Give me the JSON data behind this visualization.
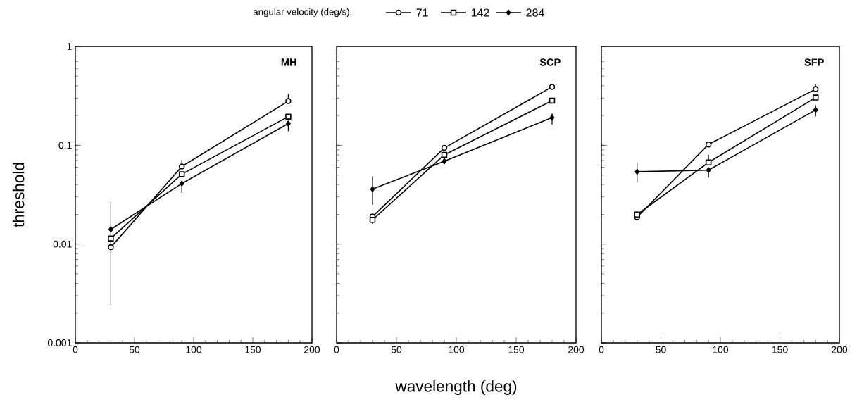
{
  "chart_data": [
    {
      "type": "line",
      "title": "MH",
      "ylabel": "threshold",
      "legend_title": "angular velocity (deg/s):",
      "legend": "top",
      "log": "y",
      "grid": false,
      "line_style": "solid",
      "x": [
        30,
        90,
        180
      ],
      "xlim": [
        0,
        200
      ],
      "ylim": [
        0.001,
        1
      ],
      "xticks": [
        0,
        50,
        100,
        150,
        200
      ],
      "yticks": [
        0.001,
        0.01,
        0.1,
        1
      ],
      "series": [
        {
          "name": "71",
          "color": "#000000",
          "marker": "circle",
          "values": [
            0.0093,
            0.061,
            0.28
          ],
          "errors": [
            [
              0.0024,
              0.027
            ],
            [
              0.061,
              0.071
            ],
            [
              0.28,
              0.33
            ]
          ]
        },
        {
          "name": "142",
          "color": "#000000",
          "marker": "square",
          "values": [
            0.0114,
            0.051,
            0.195
          ]
        },
        {
          "name": "284",
          "color": "#000000",
          "marker": "diamond",
          "values": [
            0.0141,
            0.041,
            0.166
          ],
          "errors": [
            null,
            [
              0.033,
              0.041
            ],
            [
              0.139,
              0.166
            ]
          ]
        }
      ]
    },
    {
      "type": "line",
      "title": "SCP",
      "xlabel": "wavelength (deg)",
      "log": "y",
      "grid": false,
      "line_style": "solid",
      "tick_labels": "x",
      "x": [
        30,
        90,
        180
      ],
      "xlim": [
        0,
        200
      ],
      "ylim": [
        0.001,
        1
      ],
      "xticks": [
        0,
        50,
        100,
        150,
        200
      ],
      "yticks": [
        0.001,
        0.01,
        0.1,
        1
      ],
      "series": [
        {
          "color": "#000000",
          "marker": "circle",
          "values": [
            0.019,
            0.094,
            0.39
          ]
        },
        {
          "color": "#000000",
          "marker": "square",
          "values": [
            0.0176,
            0.08,
            0.283
          ],
          "errors": [
            [
              0.016,
              0.0176
            ],
            null,
            null
          ]
        },
        {
          "color": "#000000",
          "marker": "diamond",
          "values": [
            0.036,
            0.069,
            0.191
          ],
          "errors": [
            [
              0.025,
              0.0485
            ],
            null,
            [
              0.162,
              0.21
            ]
          ]
        }
      ]
    },
    {
      "type": "line",
      "title": "SFP",
      "log": "y",
      "grid": false,
      "line_style": "solid",
      "tick_labels": "x",
      "x": [
        30,
        90,
        180
      ],
      "xlim": [
        0,
        200
      ],
      "ylim": [
        0.001,
        1
      ],
      "xticks": [
        0,
        50,
        100,
        150,
        200
      ],
      "yticks": [
        0.001,
        0.01,
        0.1,
        1
      ],
      "series": [
        {
          "color": "#000000",
          "marker": "circle",
          "values": [
            0.0187,
            0.102,
            0.37
          ],
          "errors": [
            null,
            null,
            [
              0.37,
              0.41
            ]
          ]
        },
        {
          "color": "#000000",
          "marker": "square",
          "values": [
            0.0199,
            0.067,
            0.304
          ],
          "errors": [
            null,
            [
              0.067,
              0.08
            ],
            null
          ]
        },
        {
          "color": "#000000",
          "marker": "diamond",
          "values": [
            0.054,
            0.056,
            0.228
          ],
          "errors": [
            [
              0.042,
              0.066
            ],
            [
              0.047,
              0.056
            ],
            [
              0.196,
              0.254
            ]
          ]
        }
      ]
    }
  ]
}
